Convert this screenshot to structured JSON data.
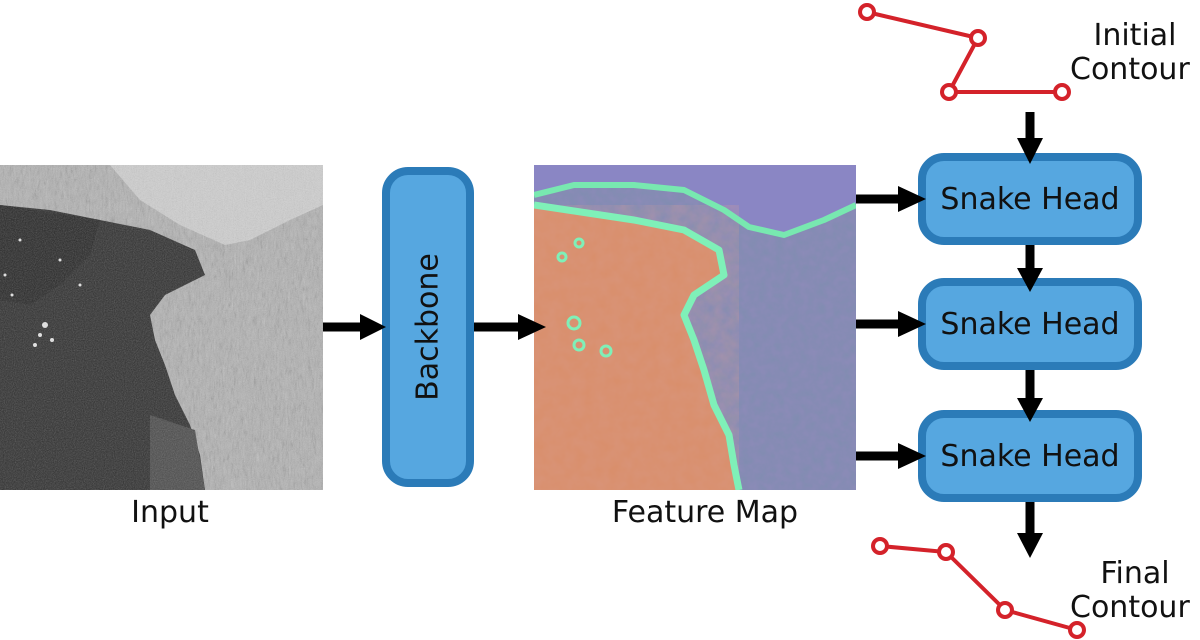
{
  "input": {
    "label": "Input"
  },
  "backbone": {
    "label": "Backbone"
  },
  "feature_map": {
    "label": "Feature Map"
  },
  "snake_heads": [
    {
      "label": "Snake Head"
    },
    {
      "label": "Snake Head"
    },
    {
      "label": "Snake Head"
    }
  ],
  "initial_contour": {
    "label_line1": "Initial",
    "label_line2": "Contour"
  },
  "final_contour": {
    "label_line1": "Final",
    "label_line2": "Contour"
  },
  "colors": {
    "box_fill": "#56a7e0",
    "box_border": "#2b7bb8",
    "contour": "#d4222a",
    "arrow": "#000000"
  }
}
